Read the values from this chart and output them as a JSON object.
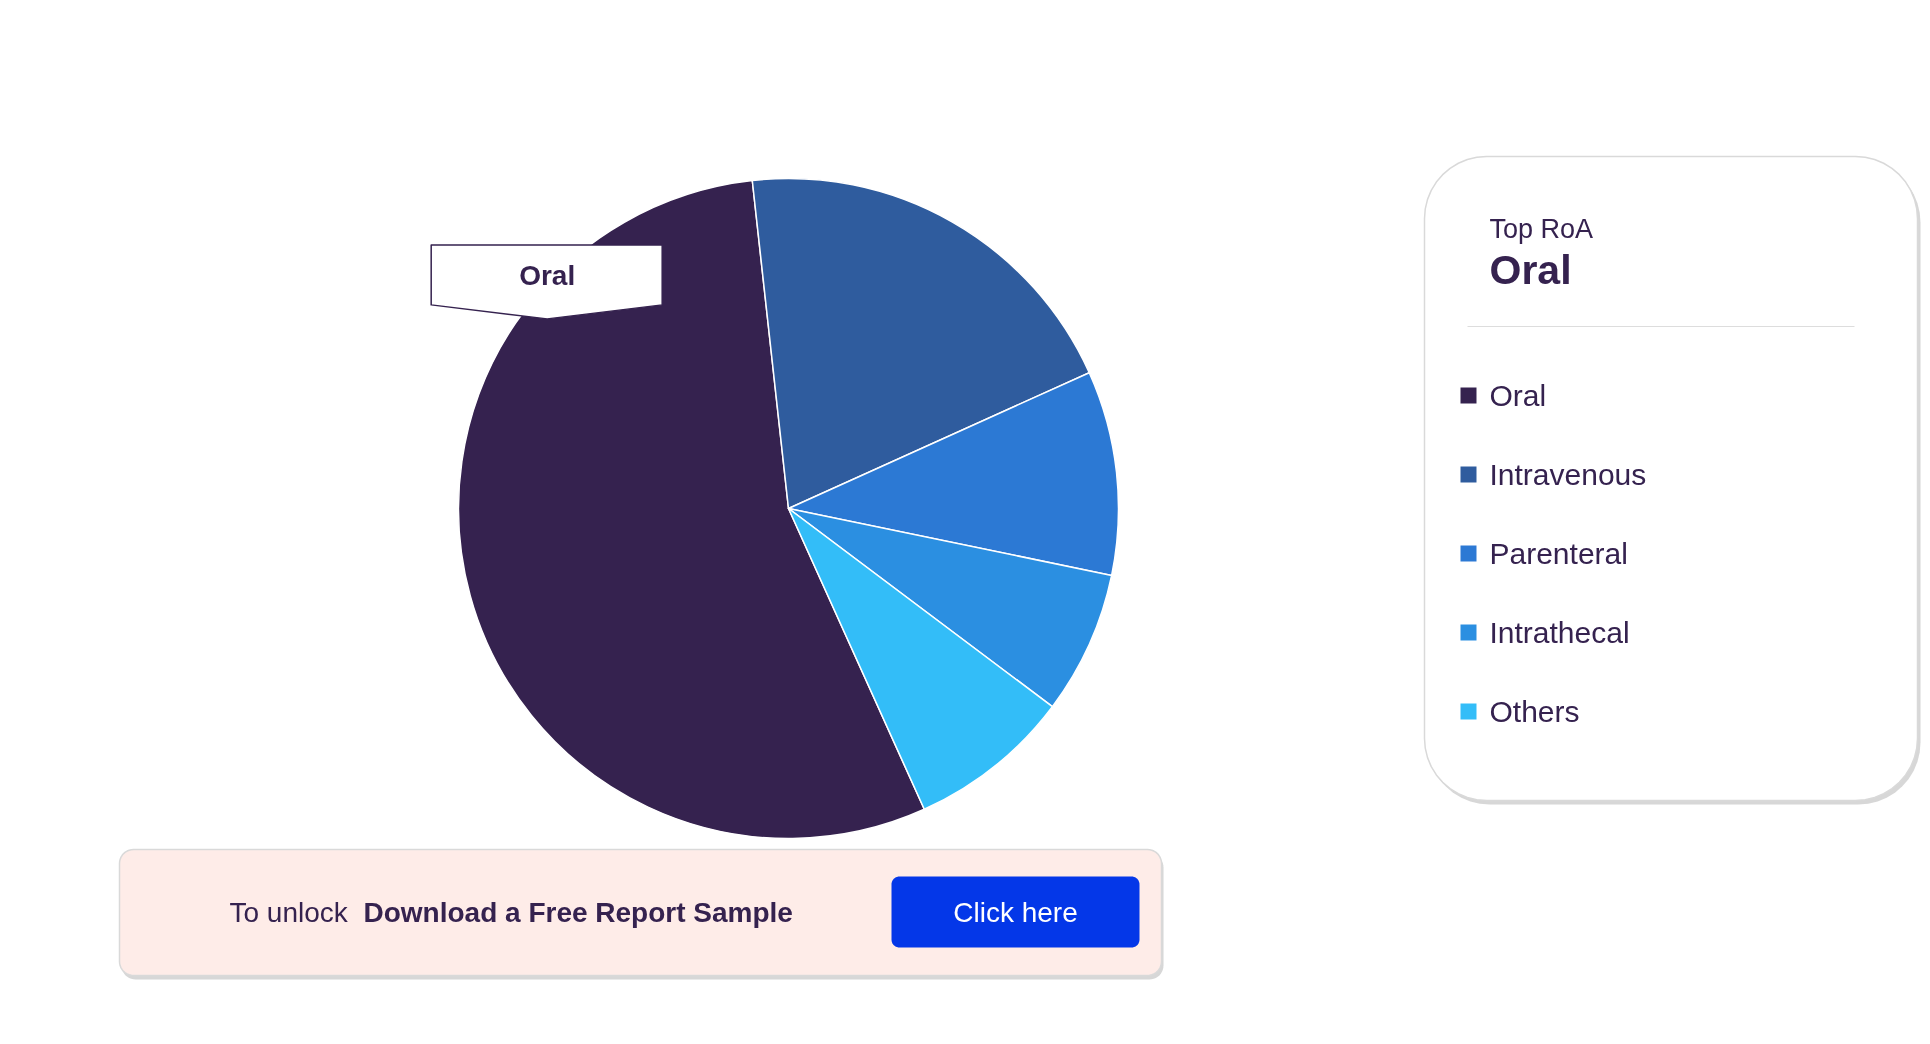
{
  "chart_data": {
    "type": "pie",
    "categories": [
      "Oral",
      "Intravenous",
      "Parenteral",
      "Intrathecal",
      "Others"
    ],
    "values": [
      55,
      20,
      10,
      7,
      8
    ],
    "colors": [
      "#35224f",
      "#2f5c9e",
      "#2c79d4",
      "#2b8fe1",
      "#33bdf8"
    ],
    "legend": "right",
    "annotations": [
      "Top RoA",
      "Oral",
      {
        "text": "Oral",
        "x": "Oral"
      },
      "To unlock",
      "Download a Free Report Sample",
      "Click here"
    ]
  }
}
